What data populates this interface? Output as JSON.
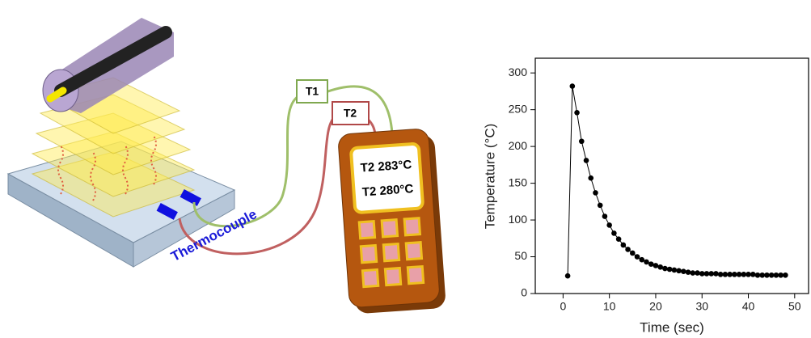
{
  "diagram": {
    "probe_1": "T1",
    "probe_2": "T2",
    "reading_1": "T2 283°C",
    "reading_2": "T2 280°C",
    "thermocouple_label": "Thermocouple"
  },
  "chart_data": {
    "type": "line",
    "x_label": "Time (sec)",
    "y_label": "Temperature (°C)",
    "x": [
      1,
      2,
      3,
      4,
      5,
      6,
      7,
      8,
      9,
      10,
      11,
      12,
      13,
      14,
      15,
      16,
      17,
      18,
      19,
      20,
      21,
      22,
      23,
      24,
      25,
      26,
      27,
      28,
      29,
      30,
      31,
      32,
      33,
      34,
      35,
      36,
      37,
      38,
      39,
      40,
      41,
      42,
      43,
      44,
      45,
      46,
      47,
      48
    ],
    "series": [
      {
        "color": "#000000",
        "values": [
          24,
          282,
          246,
          207,
          181,
          157,
          137,
          120,
          105,
          93,
          82,
          74,
          66,
          60,
          55,
          50,
          46,
          43,
          40,
          38,
          36,
          34,
          33,
          32,
          31,
          30,
          29,
          28,
          28,
          27,
          27,
          27,
          27,
          26,
          26,
          26,
          26,
          26,
          26,
          26,
          26,
          25,
          25,
          25,
          25,
          25,
          25,
          25
        ]
      }
    ],
    "xlim": [
      -6,
      53
    ],
    "ylim": [
      0,
      320
    ],
    "xticks": [
      0,
      10,
      20,
      30,
      40,
      50
    ],
    "yticks": [
      0,
      50,
      100,
      150,
      200,
      250,
      300
    ]
  }
}
